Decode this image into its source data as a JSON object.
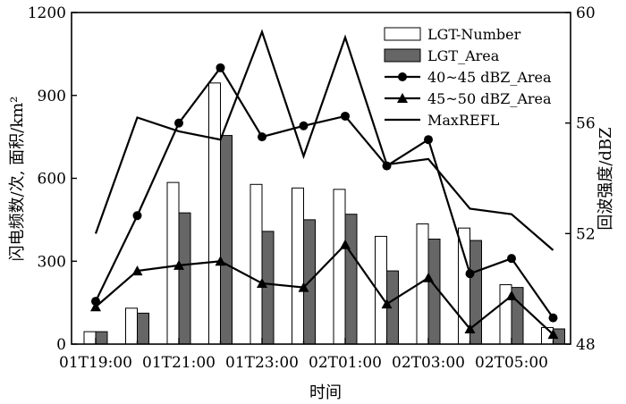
{
  "chart_data": {
    "type": "bar",
    "xlabel": "时间",
    "ylabel_left": "闪电频数/次, 面积/km²",
    "ylabel_right": "回波强度/dBZ",
    "ylim_left": [
      0,
      1200
    ],
    "ylim_right": [
      48,
      60
    ],
    "yticks_left": [
      "0",
      "300",
      "600",
      "900",
      "1200"
    ],
    "yticks_right": [
      "48",
      "52",
      "56",
      "60"
    ],
    "xticks": [
      "01T19:00",
      "01T21:00",
      "01T23:00",
      "02T01:00",
      "02T03:00",
      "02T05:00"
    ],
    "x": [
      "01T19:00",
      "01T20:00",
      "01T21:00",
      "01T22:00",
      "01T23:00",
      "02T00:00",
      "02T01:00",
      "02T02:00",
      "02T03:00",
      "02T04:00",
      "02T05:00",
      "02T06:00"
    ],
    "series": [
      {
        "name": "LGT-Number",
        "axis": "left",
        "kind": "bar",
        "color": "#ffffff",
        "values": [
          45,
          130,
          585,
          945,
          578,
          565,
          560,
          390,
          435,
          420,
          215,
          60
        ]
      },
      {
        "name": "LGT_Area",
        "axis": "left",
        "kind": "bar",
        "color": "#666666",
        "values": [
          45,
          112,
          475,
          755,
          408,
          450,
          470,
          265,
          380,
          375,
          205,
          55
        ]
      },
      {
        "name": "40~45 dBZ_Area",
        "axis": "left",
        "kind": "line",
        "marker": "circle",
        "values": [
          155,
          465,
          800,
          1000,
          750,
          790,
          825,
          645,
          740,
          255,
          310,
          95
        ]
      },
      {
        "name": "45~50 dBZ_Area",
        "axis": "left",
        "kind": "line",
        "marker": "triangle",
        "values": [
          135,
          265,
          285,
          300,
          220,
          205,
          360,
          145,
          240,
          55,
          175,
          35
        ]
      },
      {
        "name": "MaxREFL",
        "axis": "right",
        "kind": "line",
        "marker": "none",
        "values": [
          52.0,
          56.2,
          55.7,
          55.4,
          59.3,
          54.8,
          59.1,
          54.5,
          54.7,
          52.9,
          52.7,
          51.4
        ]
      }
    ],
    "legend_position": "top-right",
    "grid": false
  }
}
